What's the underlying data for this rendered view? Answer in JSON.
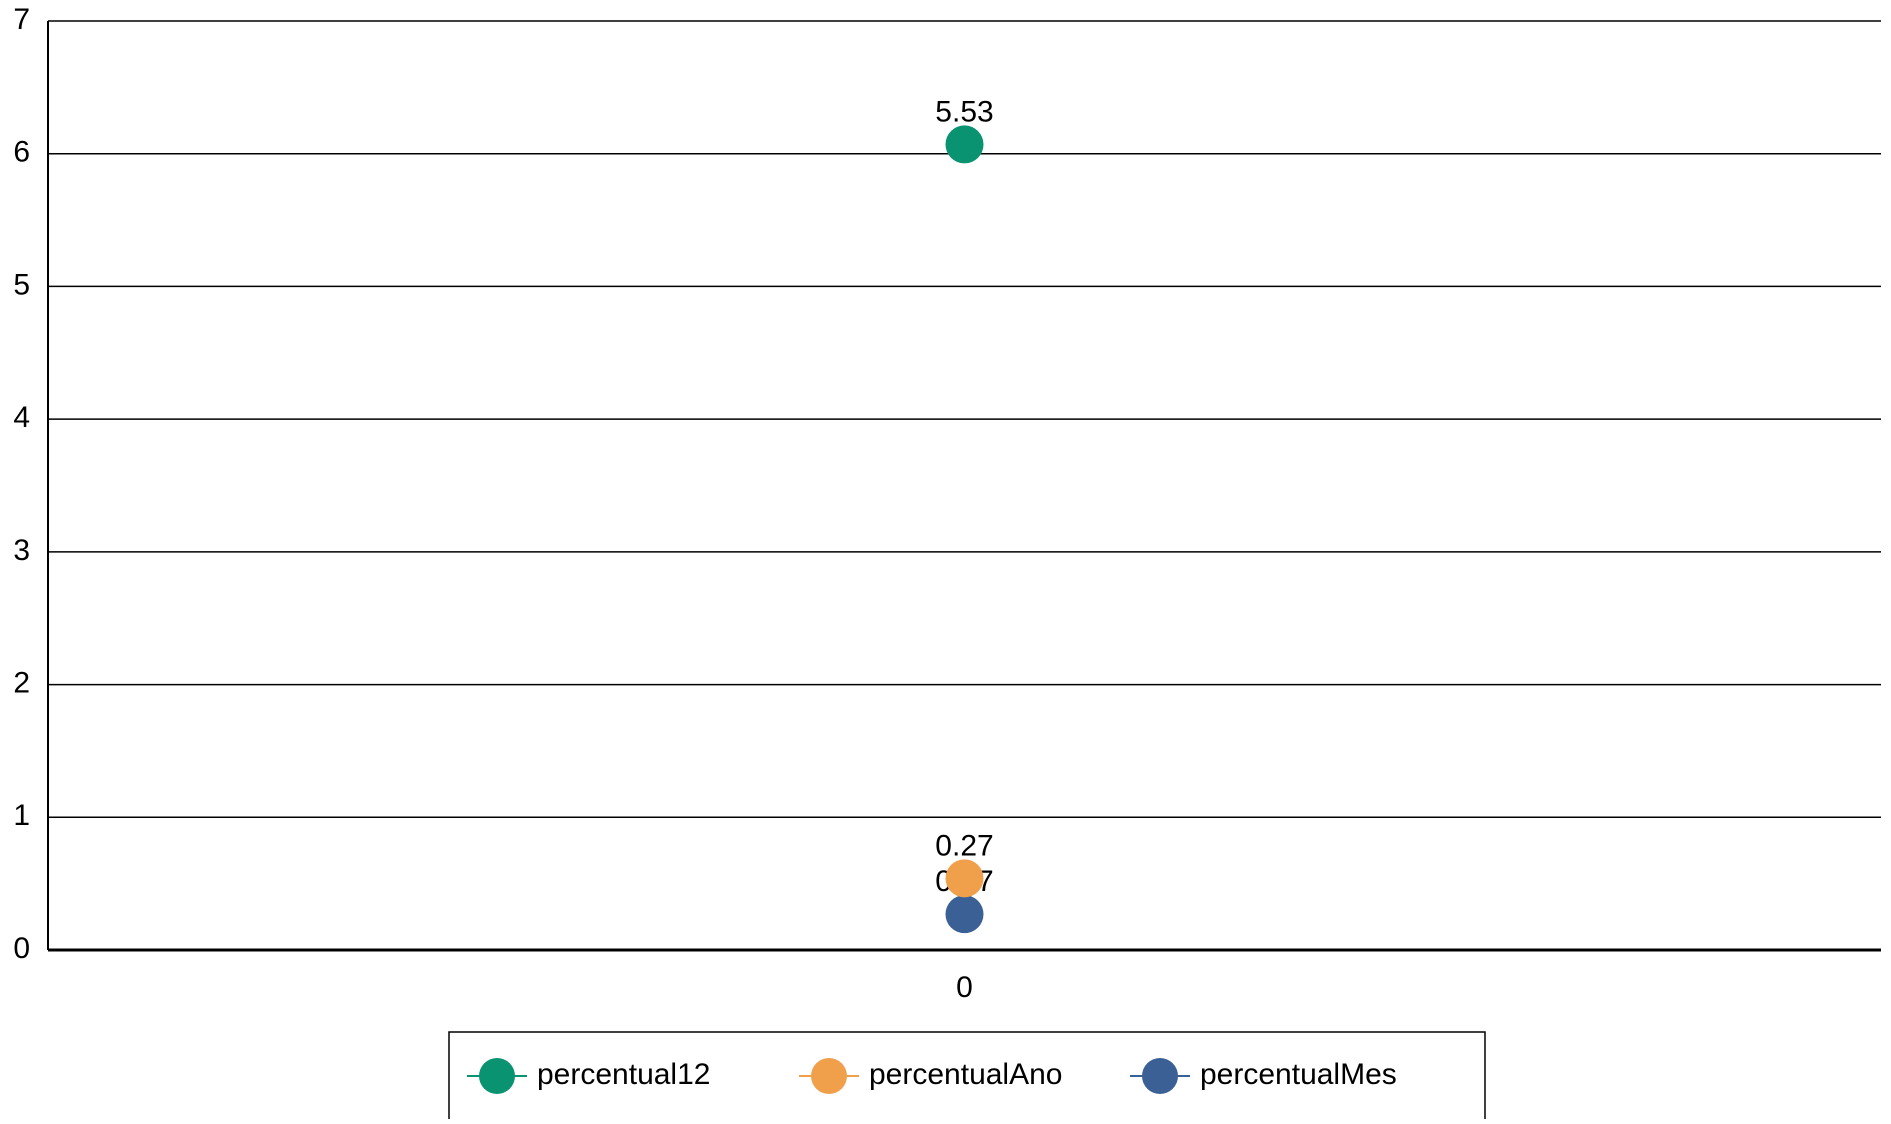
{
  "chart_data": {
    "type": "line",
    "stacked": true,
    "categories": [
      "0"
    ],
    "series": [
      {
        "name": "percentual12",
        "color": "#0a9370",
        "values": [
          5.53
        ]
      },
      {
        "name": "percentualAno",
        "color": "#f0a04b",
        "values": [
          0.27
        ]
      },
      {
        "name": "percentualMes",
        "color": "#3a6096",
        "values": [
          0.27
        ]
      }
    ],
    "ylim": [
      0,
      7
    ],
    "yticks": [
      0,
      1,
      2,
      3,
      4,
      5,
      6,
      7
    ],
    "grid": true,
    "legend": "bottom"
  }
}
